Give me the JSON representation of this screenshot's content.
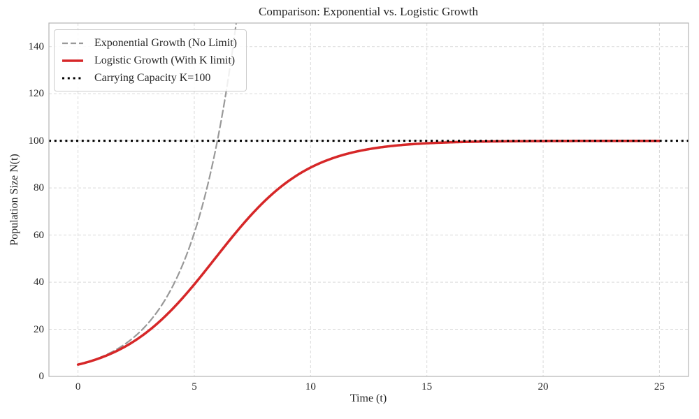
{
  "chart_data": {
    "type": "line",
    "title": "Comparison: Exponential vs. Logistic Growth",
    "xlabel": "Time (t)",
    "ylabel": "Population Size N(t)",
    "xlim": [
      -1.25,
      26.25
    ],
    "ylim": [
      0,
      150
    ],
    "xticks": [
      0,
      5,
      10,
      15,
      20,
      25
    ],
    "yticks": [
      0,
      20,
      40,
      60,
      80,
      100,
      120,
      140
    ],
    "grid": true,
    "grid_color": "#d9d9d9",
    "spine_color": "#b3b3b3",
    "text_color": "#262626",
    "legend": {
      "position": "upper left"
    },
    "series": [
      {
        "name": "Exponential Growth (No Limit)",
        "color": "#999999",
        "style": "dashed",
        "linewidth": 2.2,
        "model": {
          "type": "exponential",
          "N0": 5,
          "r": 0.5,
          "t_start": 0,
          "t_end": 6.81
        },
        "x": [
          0,
          1,
          2,
          3,
          4,
          5,
          6,
          6.81
        ],
        "y": [
          5.0,
          8.24,
          13.59,
          22.41,
          36.95,
          60.92,
          100.43,
          150.2
        ]
      },
      {
        "name": "Logistic Growth (With K limit)",
        "color": "#d62728",
        "style": "solid",
        "linewidth": 3.5,
        "model": {
          "type": "logistic",
          "N0": 5,
          "r": 0.5,
          "K": 100,
          "t_start": 0,
          "t_end": 25
        },
        "x": [
          0,
          1,
          2,
          3,
          4,
          5,
          6,
          7,
          8,
          9,
          10,
          11,
          12,
          13,
          14,
          15,
          16,
          17,
          18,
          19,
          20,
          21,
          22,
          23,
          24,
          25
        ],
        "y": [
          5.0,
          7.99,
          12.52,
          19.09,
          28.0,
          39.07,
          51.39,
          63.55,
          74.18,
          82.57,
          88.65,
          92.79,
          95.5,
          97.22,
          98.3,
          98.96,
          99.37,
          99.62,
          99.77,
          99.86,
          99.91,
          99.95,
          99.97,
          99.98,
          99.99,
          99.99
        ]
      },
      {
        "name": "Carrying Capacity K=100",
        "color": "#000000",
        "style": "dotted",
        "linewidth": 3,
        "model": {
          "type": "constant",
          "value": 100
        }
      }
    ]
  }
}
